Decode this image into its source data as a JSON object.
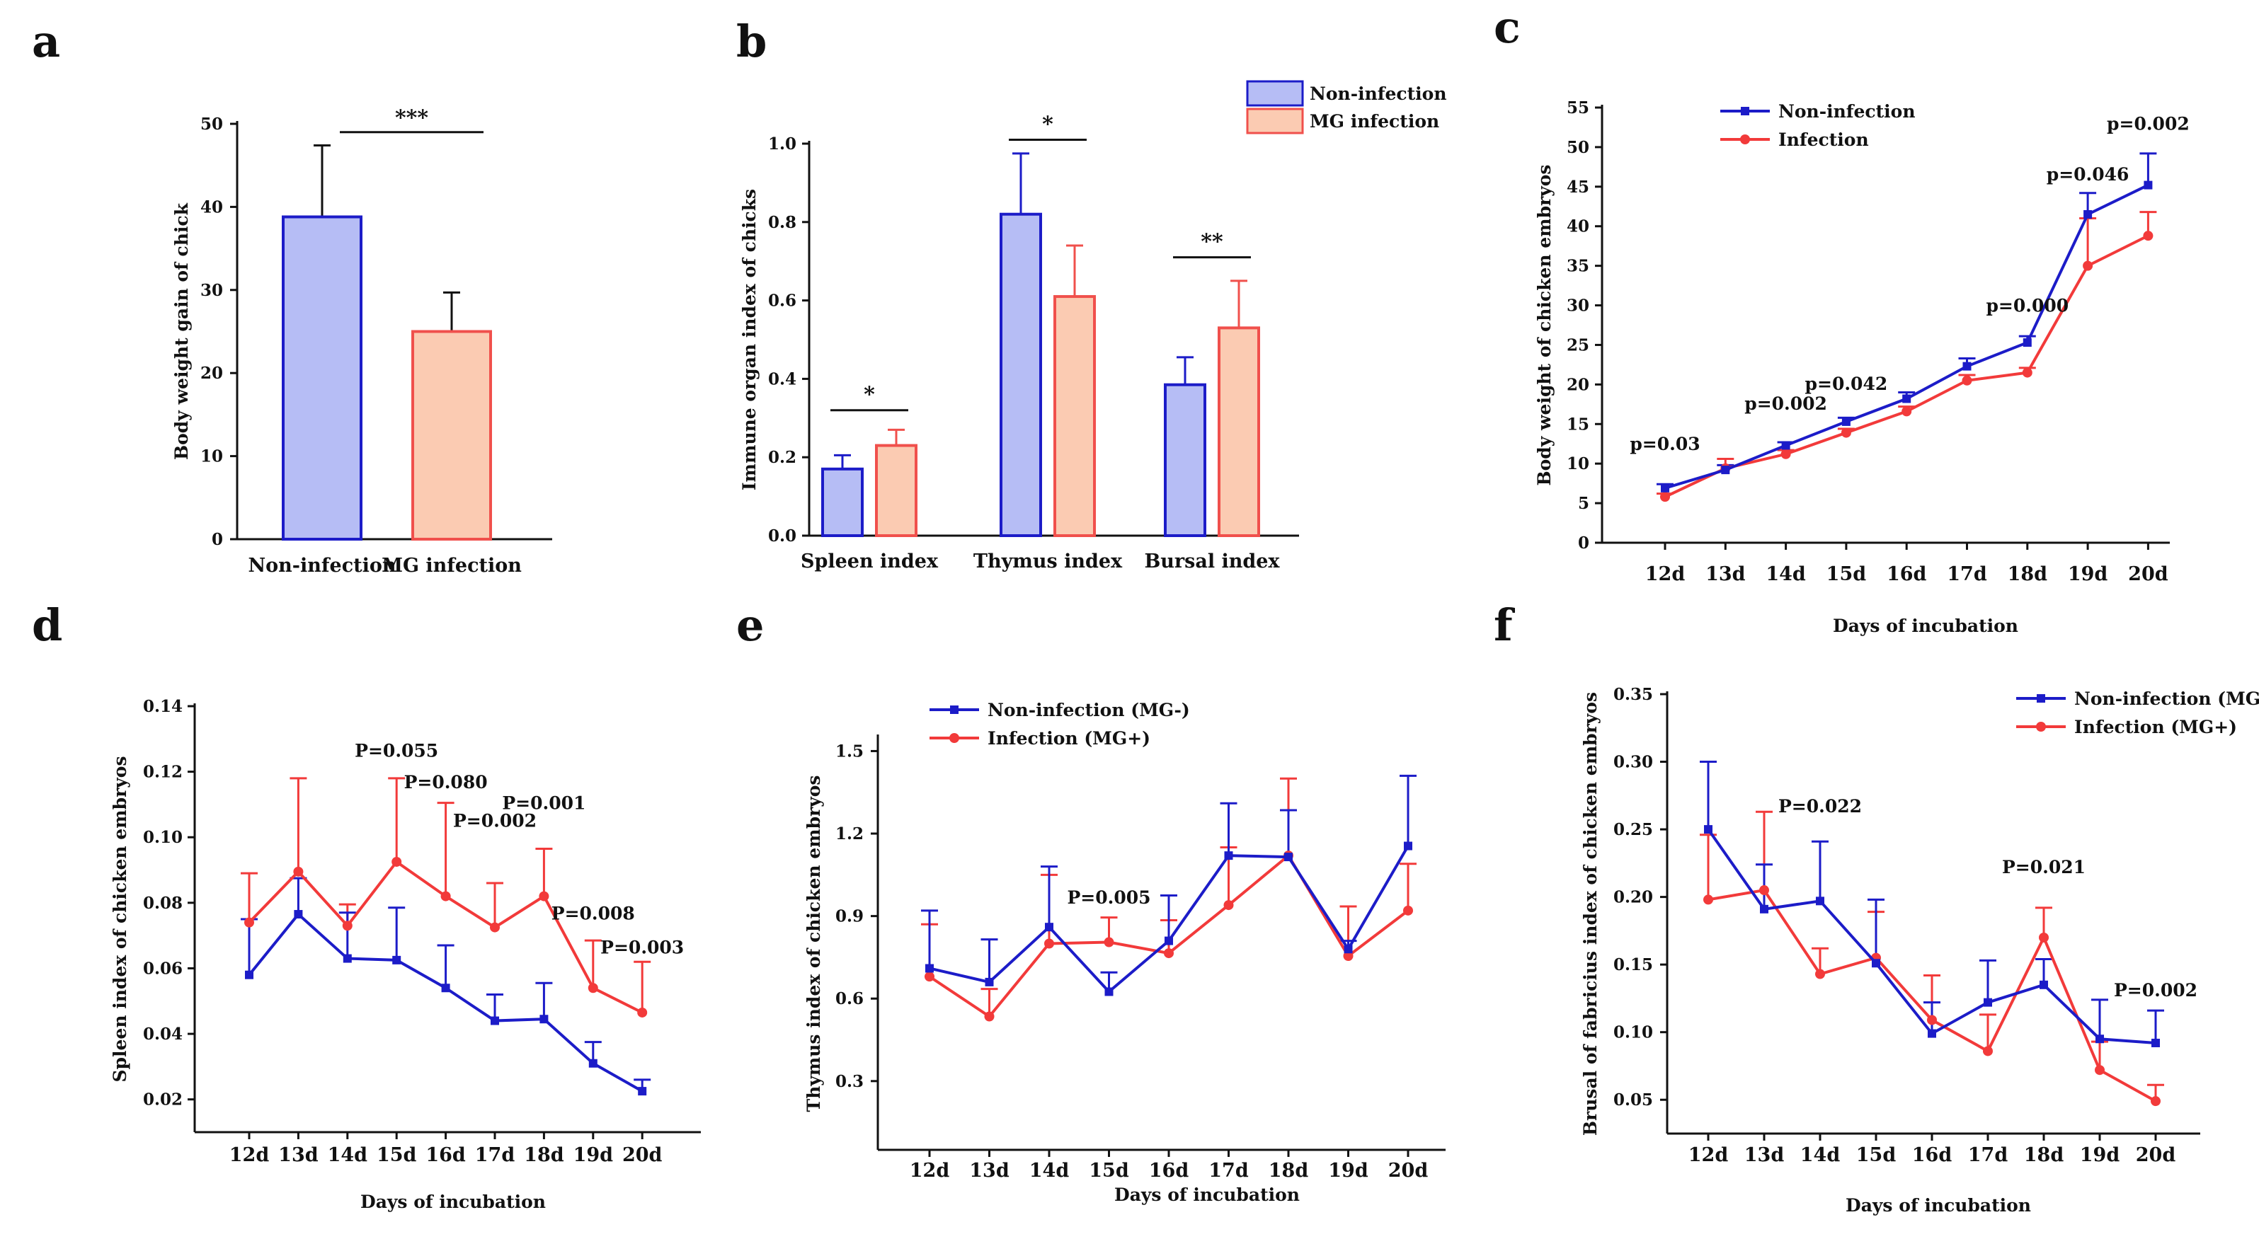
{
  "colors": {
    "blue": "#1c1cc8",
    "red": "#f23a3a",
    "bar_blue_fill": "#b6bdf5",
    "bar_red_fill": "#fbcbb2",
    "bar_red_edge": "#f0504c"
  },
  "chart_data": [
    {
      "id": "a",
      "panel_label": "a",
      "type": "bar",
      "ylabel": "Body weight gain of chick",
      "ylim": [
        0,
        50
      ],
      "yticks": [
        "0",
        "10",
        "20",
        "30",
        "40",
        "50"
      ],
      "categories": [
        "Non-infection",
        "MG infection"
      ],
      "values": [
        38.8,
        25.0
      ],
      "errors": [
        8.6,
        4.7
      ],
      "significance": [
        {
          "label": "***",
          "between": [
            0,
            1
          ],
          "y": 49
        }
      ]
    },
    {
      "id": "b",
      "panel_label": "b",
      "type": "bar",
      "ylabel": "Immune organ index of chicks",
      "ylim": [
        0,
        1.0
      ],
      "yticks": [
        "0.0",
        "0.2",
        "0.4",
        "0.6",
        "0.8",
        "1.0"
      ],
      "categories": [
        "Spleen index",
        "Thymus index",
        "Bursal index"
      ],
      "series": [
        {
          "name": "Non-infection",
          "values": [
            0.17,
            0.82,
            0.385
          ],
          "errors": [
            0.035,
            0.155,
            0.07
          ]
        },
        {
          "name": "MG infection",
          "values": [
            0.23,
            0.61,
            0.53
          ],
          "errors": [
            0.04,
            0.13,
            0.12
          ]
        }
      ],
      "significance": [
        {
          "label": "*",
          "category": 0,
          "y": 0.32
        },
        {
          "label": "*",
          "category": 1,
          "y": 1.01
        },
        {
          "label": "**",
          "category": 2,
          "y": 0.71
        }
      ],
      "legend_position": "top-right"
    },
    {
      "id": "c",
      "panel_label": "c",
      "type": "line",
      "ylabel": "Body weight of chicken embryos",
      "xlabel": "Days of incubation",
      "ylim": [
        0,
        55
      ],
      "yticks": [
        "0",
        "5",
        "10",
        "15",
        "20",
        "25",
        "30",
        "35",
        "40",
        "45",
        "50",
        "55"
      ],
      "categories": [
        "12d",
        "13d",
        "14d",
        "15d",
        "16d",
        "17d",
        "18d",
        "19d",
        "20d"
      ],
      "series": [
        {
          "name": "Non-infection",
          "values": [
            6.9,
            9.2,
            12.3,
            15.3,
            18.2,
            22.3,
            25.3,
            41.5,
            45.2
          ],
          "errors": [
            0.5,
            0.6,
            0.4,
            0.5,
            0.8,
            1.0,
            0.8,
            2.7,
            4.0
          ]
        },
        {
          "name": "Infection",
          "values": [
            5.8,
            9.4,
            11.2,
            13.9,
            16.6,
            20.5,
            21.5,
            35.0,
            38.8
          ],
          "errors": [
            0.4,
            1.2,
            0.5,
            0.5,
            0.6,
            0.7,
            0.6,
            6.0,
            3.0
          ]
        }
      ],
      "annotations": [
        {
          "text": "p=0.03",
          "cat": 0,
          "y": 11.7
        },
        {
          "text": "p=0.002",
          "cat": 2,
          "y": 16.8
        },
        {
          "text": "p=0.042",
          "cat": 3,
          "y": 19.3
        },
        {
          "text": "p=0.000",
          "cat": 6,
          "y": 29.2
        },
        {
          "text": "p=0.046",
          "cat": 7,
          "y": 45.8
        },
        {
          "text": "p=0.002",
          "cat": 8,
          "y": 52.2
        }
      ],
      "legend_position": "top-left"
    },
    {
      "id": "d",
      "panel_label": "d",
      "type": "line",
      "ylabel": "Spleen index of chicken embryos",
      "xlabel": "Days of incubation",
      "ylim": [
        0.01,
        0.14
      ],
      "ytick_values": [
        0.02,
        0.04,
        0.06,
        0.08,
        0.1,
        0.12,
        0.14
      ],
      "yticks": [
        "0.02",
        "0.04",
        "0.06",
        "0.08",
        "0.10",
        "0.12",
        "0.14"
      ],
      "categories": [
        "12d",
        "13d",
        "14d",
        "15d",
        "16d",
        "17d",
        "18d",
        "19d",
        "20d"
      ],
      "series": [
        {
          "name": "Non-infection",
          "values": [
            0.058,
            0.0765,
            0.063,
            0.0625,
            0.054,
            0.044,
            0.0445,
            0.031,
            0.0225
          ],
          "errors": [
            0.017,
            0.011,
            0.014,
            0.016,
            0.013,
            0.008,
            0.011,
            0.0065,
            0.0035
          ]
        },
        {
          "name": "Infection",
          "values": [
            0.074,
            0.0895,
            0.073,
            0.0925,
            0.082,
            0.0725,
            0.082,
            0.054,
            0.0465
          ],
          "errors": [
            0.015,
            0.0285,
            0.0065,
            0.0255,
            0.0285,
            0.0135,
            0.0145,
            0.0145,
            0.0155
          ]
        }
      ],
      "annotations": [
        {
          "text": "P=0.055",
          "cat": 3,
          "y": 0.1246
        },
        {
          "text": "P=0.080",
          "cat": 4,
          "y": 0.115
        },
        {
          "text": "P=0.002",
          "cat": 5,
          "y": 0.1032
        },
        {
          "text": "P=0.001",
          "cat": 6,
          "y": 0.1086
        },
        {
          "text": "P=0.008",
          "cat": 7,
          "y": 0.0749
        },
        {
          "text": "P=0.003",
          "cat": 8,
          "y": 0.0645
        }
      ],
      "legend": false
    },
    {
      "id": "e",
      "panel_label": "e",
      "type": "line",
      "ylabel": "Thymus index of chicken embryos",
      "xlabel": "Days of incubation",
      "ylim": [
        0.05,
        1.55
      ],
      "ytick_values": [
        0.3,
        0.6,
        0.9,
        1.2,
        1.5
      ],
      "yticks": [
        "0.3",
        "0.6",
        "0.9",
        "1.2",
        "1.5"
      ],
      "categories": [
        "12d",
        "13d",
        "14d",
        "15d",
        "16d",
        "17d",
        "18d",
        "19d",
        "20d"
      ],
      "series": [
        {
          "name": "Non-infection (MG-)",
          "values": [
            0.71,
            0.66,
            0.86,
            0.625,
            0.81,
            1.12,
            1.115,
            0.78,
            1.155
          ],
          "errors": [
            0.21,
            0.155,
            0.22,
            0.07,
            0.165,
            0.19,
            0.17,
            0.03,
            0.255
          ]
        },
        {
          "name": "Infection (MG+)",
          "values": [
            0.68,
            0.535,
            0.8,
            0.805,
            0.765,
            0.94,
            1.12,
            0.755,
            0.92
          ],
          "errors": [
            0.19,
            0.1,
            0.25,
            0.09,
            0.12,
            0.21,
            0.28,
            0.18,
            0.17
          ]
        }
      ],
      "annotations": [
        {
          "text": "P=0.005",
          "cat": 3,
          "y": 0.945
        }
      ],
      "legend_position": "top-left"
    },
    {
      "id": "f",
      "panel_label": "f",
      "type": "line",
      "ylabel": "Brusal of fabricius index of chicken embryos",
      "xlabel": "Days of incubation",
      "ylim": [
        0.025,
        0.35
      ],
      "ytick_values": [
        0.05,
        0.1,
        0.15,
        0.2,
        0.25,
        0.3,
        0.35
      ],
      "yticks": [
        "0.05",
        "0.10",
        "0.15",
        "0.20",
        "0.25",
        "0.30",
        "0.35"
      ],
      "categories": [
        "12d",
        "13d",
        "14d",
        "15d",
        "16d",
        "17d",
        "18d",
        "19d",
        "20d"
      ],
      "series": [
        {
          "name": "Non-infection (MG-)",
          "values": [
            0.25,
            0.191,
            0.197,
            0.151,
            0.099,
            0.122,
            0.135,
            0.095,
            0.092
          ],
          "errors": [
            0.05,
            0.033,
            0.044,
            0.047,
            0.023,
            0.031,
            0.019,
            0.029,
            0.024
          ]
        },
        {
          "name": "Infection (MG+)",
          "values": [
            0.198,
            0.205,
            0.143,
            0.155,
            0.109,
            0.086,
            0.17,
            0.072,
            0.049
          ],
          "errors": [
            0.048,
            0.058,
            0.019,
            0.034,
            0.033,
            0.027,
            0.022,
            0.021,
            0.012
          ]
        }
      ],
      "annotations": [
        {
          "text": "P=0.022",
          "cat": 2,
          "y": 0.2625
        },
        {
          "text": "P=0.021",
          "cat": 6,
          "y": 0.2175
        },
        {
          "text": "P=0.002",
          "cat": 8,
          "y": 0.1265
        }
      ],
      "legend_position": "top-right"
    }
  ]
}
